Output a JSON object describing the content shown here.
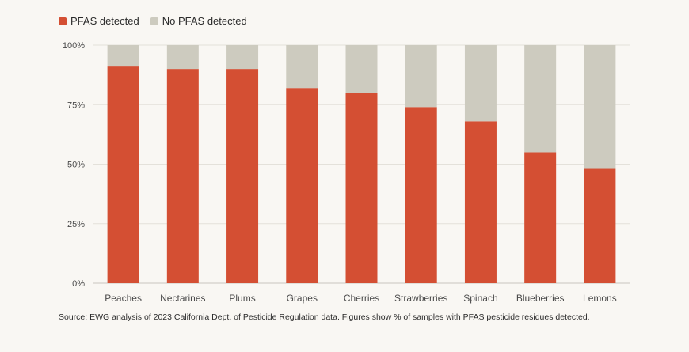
{
  "colors": {
    "pfas": "#d44f33",
    "no_pfas": "#cdcbbf",
    "grid": "#e4e1da",
    "axis": "#c9c6bf",
    "text": "#4a4a4a"
  },
  "chart_data": {
    "type": "bar",
    "stacked": true,
    "percent_stacked": true,
    "title": "",
    "xlabel": "",
    "ylabel": "",
    "ylim": [
      0,
      100
    ],
    "y_ticks": [
      "0%",
      "25%",
      "50%",
      "75%",
      "100%"
    ],
    "grid": true,
    "legend_position": "top-left",
    "categories": [
      "Peaches",
      "Nectarines",
      "Plums",
      "Grapes",
      "Cherries",
      "Strawberries",
      "Spinach",
      "Blueberries",
      "Lemons"
    ],
    "series": [
      {
        "name": "PFAS detected",
        "values": [
          91,
          90,
          90,
          82,
          80,
          74,
          68,
          55,
          48
        ]
      },
      {
        "name": "No PFAS detected",
        "values": [
          9,
          10,
          10,
          18,
          20,
          26,
          32,
          45,
          52
        ]
      }
    ]
  },
  "source_note": "Source: EWG analysis of 2023 California Dept. of Pesticide Regulation data. Figures show % of samples with PFAS pesticide residues detected."
}
